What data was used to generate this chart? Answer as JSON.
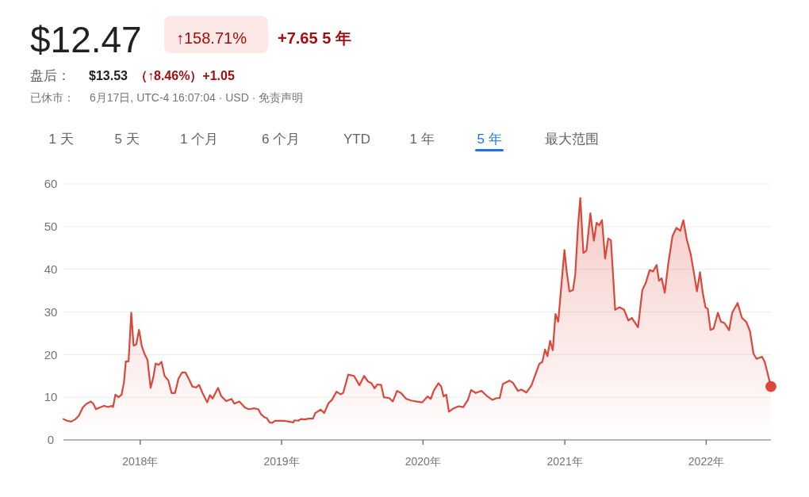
{
  "chart_data": {
    "type": "area",
    "title": "$12.47",
    "annotations": [
      "↑158.71%",
      "+7.65 5 年",
      "盘后：",
      "$13.53",
      "（↑8.46%）+1.05",
      "已休市：",
      "6月17日, UTC-4 16:07:04 · USD · 免责声明",
      "1 天",
      "5 天",
      "1 个月",
      "6 个月",
      "YTD",
      "1 年",
      "5 年",
      "最大范围"
    ],
    "xlim": [
      "2017-06-17",
      "2022-06-17"
    ],
    "ylim": [
      0,
      60
    ],
    "xticks": [
      {
        "value": "2018-01-01",
        "label": "2018年"
      },
      {
        "value": "2019-01-01",
        "label": "2019年"
      },
      {
        "value": "2020-01-01",
        "label": "2020年"
      },
      {
        "value": "2021-01-01",
        "label": "2021年"
      },
      {
        "value": "2022-01-01",
        "label": "2022年"
      }
    ],
    "yticks": [
      0,
      10,
      20,
      30,
      40,
      50,
      60
    ],
    "grid": "y",
    "series": [
      {
        "color": "#d9483b",
        "x": [
          "2017-06-17",
          "2017-06-26",
          "2017-07-07",
          "2017-07-17",
          "2017-07-27",
          "2017-08-06",
          "2017-08-16",
          "2017-08-27",
          "2017-09-02",
          "2017-09-09",
          "2017-09-19",
          "2017-09-30",
          "2017-10-10",
          "2017-10-20",
          "2017-10-23",
          "2017-10-29",
          "2017-11-06",
          "2017-11-14",
          "2017-11-20",
          "2017-11-25",
          "2017-12-02",
          "2017-12-09",
          "2017-12-15",
          "2017-12-22",
          "2017-12-29",
          "2018-01-05",
          "2018-01-12",
          "2018-01-20",
          "2018-01-28",
          "2018-02-04",
          "2018-02-10",
          "2018-02-18",
          "2018-02-25",
          "2018-03-05",
          "2018-03-15",
          "2018-03-23",
          "2018-04-01",
          "2018-04-10",
          "2018-04-19",
          "2018-04-28",
          "2018-05-07",
          "2018-05-16",
          "2018-05-25",
          "2018-06-02",
          "2018-06-11",
          "2018-06-23",
          "2018-06-30",
          "2018-07-07",
          "2018-07-21",
          "2018-07-29",
          "2018-08-11",
          "2018-08-25",
          "2018-09-01",
          "2018-09-14",
          "2018-09-28",
          "2018-10-08",
          "2018-10-22",
          "2018-11-02",
          "2018-11-09",
          "2018-11-18",
          "2018-11-24",
          "2018-12-01",
          "2018-12-08",
          "2018-12-15",
          "2018-12-25",
          "2019-01-07",
          "2019-01-20",
          "2019-01-31",
          "2019-02-03",
          "2019-02-13",
          "2019-02-20",
          "2019-03-02",
          "2019-03-12",
          "2019-03-23",
          "2019-03-29",
          "2019-04-12",
          "2019-04-21",
          "2019-05-02",
          "2019-05-11",
          "2019-05-23",
          "2019-06-02",
          "2019-06-09",
          "2019-06-22",
          "2019-07-07",
          "2019-07-21",
          "2019-08-02",
          "2019-08-12",
          "2019-08-21",
          "2019-08-29",
          "2019-09-05",
          "2019-09-15",
          "2019-09-22",
          "2019-10-06",
          "2019-10-15",
          "2019-10-26",
          "2019-11-05",
          "2019-11-19",
          "2019-12-03",
          "2019-12-16",
          "2019-12-30",
          "2020-01-13",
          "2020-01-21",
          "2020-01-29",
          "2020-02-10",
          "2020-02-17",
          "2020-02-23",
          "2020-03-01",
          "2020-03-08",
          "2020-03-20",
          "2020-04-02",
          "2020-04-14",
          "2020-04-26",
          "2020-05-04",
          "2020-05-16",
          "2020-05-31",
          "2020-06-14",
          "2020-06-28",
          "2020-07-09",
          "2020-07-17",
          "2020-07-25",
          "2020-08-11",
          "2020-08-20",
          "2020-09-02",
          "2020-09-11",
          "2020-09-24",
          "2020-10-07",
          "2020-10-17",
          "2020-10-27",
          "2020-11-04",
          "2020-11-11",
          "2020-11-17",
          "2020-11-24",
          "2020-12-01",
          "2020-12-08",
          "2020-12-15",
          "2020-12-31",
          "2021-01-06",
          "2021-01-13",
          "2021-01-22",
          "2021-01-28",
          "2021-02-04",
          "2021-02-10",
          "2021-02-18",
          "2021-02-26",
          "2021-03-08",
          "2021-03-17",
          "2021-03-24",
          "2021-03-31",
          "2021-04-07",
          "2021-04-15",
          "2021-04-23",
          "2021-04-30",
          "2021-05-11",
          "2021-05-22",
          "2021-06-03",
          "2021-06-14",
          "2021-06-23",
          "2021-07-09",
          "2021-07-20",
          "2021-07-29",
          "2021-08-08",
          "2021-08-17",
          "2021-08-26",
          "2021-09-01",
          "2021-09-08",
          "2021-09-16",
          "2021-09-25",
          "2021-10-06",
          "2021-10-16",
          "2021-10-26",
          "2021-11-03",
          "2021-11-12",
          "2021-11-22",
          "2021-12-01",
          "2021-12-08",
          "2021-12-16",
          "2021-12-23",
          "2021-12-30",
          "2022-01-05",
          "2022-01-12",
          "2022-01-20",
          "2022-01-31",
          "2022-02-08",
          "2022-02-17",
          "2022-03-01",
          "2022-03-09",
          "2022-03-23",
          "2022-04-03",
          "2022-04-14",
          "2022-04-24",
          "2022-05-03",
          "2022-05-11",
          "2022-05-25",
          "2022-06-01",
          "2022-06-17"
        ],
        "values": [
          4.9,
          4.5,
          4.3,
          4.8,
          5.7,
          7.6,
          8.5,
          9.0,
          8.5,
          7.2,
          7.6,
          8.0,
          7.7,
          8.0,
          7.7,
          10.6,
          10.0,
          10.6,
          13.4,
          18.4,
          18.4,
          29.8,
          22.1,
          22.4,
          25.8,
          22.1,
          20.2,
          18.7,
          12.2,
          14.7,
          17.9,
          17.6,
          18.3,
          15.0,
          13.9,
          11.0,
          11.0,
          14.4,
          15.8,
          15.8,
          14.2,
          12.5,
          12.3,
          12.9,
          11.0,
          8.8,
          10.5,
          9.7,
          12.2,
          10.3,
          9.1,
          9.6,
          8.5,
          9.0,
          7.6,
          7.2,
          7.4,
          7.2,
          6.0,
          5.3,
          5.1,
          4.1,
          4.0,
          4.5,
          4.5,
          4.5,
          4.3,
          4.1,
          4.6,
          4.5,
          4.9,
          4.8,
          5.0,
          5.0,
          6.3,
          7.1,
          6.3,
          8.6,
          9.4,
          11.3,
          10.7,
          11.0,
          15.3,
          15.0,
          12.8,
          15.0,
          13.7,
          13.3,
          12.1,
          13.0,
          12.9,
          10.0,
          9.8,
          9.0,
          11.5,
          11.0,
          9.6,
          9.2,
          9.0,
          8.8,
          10.2,
          9.6,
          11.6,
          13.3,
          12.5,
          10.2,
          10.6,
          6.6,
          7.4,
          7.9,
          7.7,
          9.4,
          11.7,
          11.0,
          11.5,
          10.3,
          9.4,
          9.8,
          9.8,
          13.1,
          13.9,
          13.4,
          11.5,
          11.8,
          11.1,
          12.8,
          15.3,
          17.8,
          18.3,
          21.2,
          19.6,
          23.2,
          21.0,
          29.5,
          27.7,
          44.5,
          39.4,
          34.8,
          35.1,
          38.8,
          50.0,
          56.7,
          43.8,
          44.4,
          53.1,
          46.7,
          50.9,
          50.3,
          51.5,
          42.5,
          47.2,
          46.8,
          30.5,
          31.1,
          30.5,
          28.0,
          28.6,
          26.4,
          35.1,
          36.8,
          39.8,
          39.5,
          41.0,
          37.3,
          37.9,
          34.5,
          41.3,
          47.8,
          49.7,
          49.0,
          51.5,
          46.9,
          43.5,
          38.8,
          34.8,
          39.3,
          34.5,
          31.1,
          30.7,
          25.8,
          26.1,
          29.8,
          27.7,
          27.4,
          25.7,
          29.8,
          32.1,
          28.6,
          27.7,
          25.5,
          20.2,
          19.0,
          19.5,
          18.3,
          12.5
        ]
      },
      {
        "type": "scatter",
        "color": "#d9483b",
        "marker": "circle",
        "x": [
          "2022-06-17"
        ],
        "values": [
          12.5
        ]
      }
    ]
  }
}
